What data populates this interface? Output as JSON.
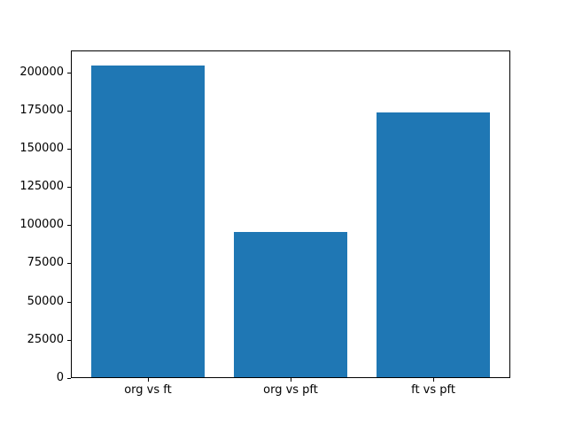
{
  "chart_data": {
    "type": "bar",
    "categories": [
      "org vs ft",
      "org vs pft",
      "ft vs pft"
    ],
    "values": [
      204000,
      95000,
      173000
    ],
    "title": "",
    "xlabel": "",
    "ylabel": "",
    "ylim": [
      0,
      214200
    ],
    "yticks": [
      0,
      25000,
      50000,
      75000,
      100000,
      125000,
      150000,
      175000,
      200000
    ],
    "ytick_labels": [
      "0",
      "25000",
      "50000",
      "75000",
      "100000",
      "125000",
      "150000",
      "175000",
      "200000"
    ],
    "grid": false,
    "legend": null,
    "colors": {
      "bar": "#1f77b4",
      "axis": "#000000",
      "text": "#000000",
      "background": "#ffffff"
    }
  }
}
